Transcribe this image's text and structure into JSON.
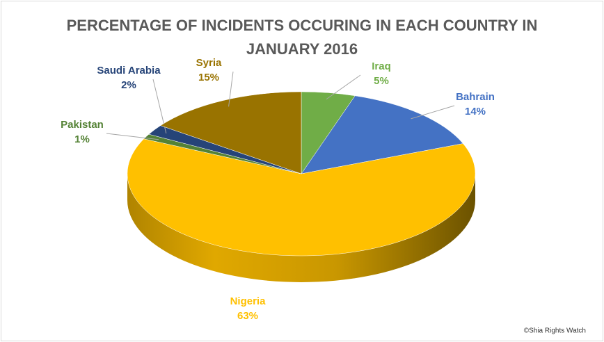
{
  "chart_data": {
    "type": "pie3d",
    "title": "PERCENTAGE OF INCIDENTS OCCURING IN EACH COUNTRY IN JANUARY 2016",
    "categories": [
      "Iraq",
      "Bahrain",
      "Nigeria",
      "Pakistan",
      "Saudi Arabia",
      "Syria"
    ],
    "values": [
      5,
      14,
      63,
      1,
      2,
      15
    ],
    "value_labels": [
      "5%",
      "14%",
      "63%",
      "1%",
      "2%",
      "15%"
    ],
    "colors": [
      "#70ad47",
      "#4472c4",
      "#ffc000",
      "#548235",
      "#264478",
      "#997300"
    ],
    "credit": "©Shia Rights Watch"
  }
}
